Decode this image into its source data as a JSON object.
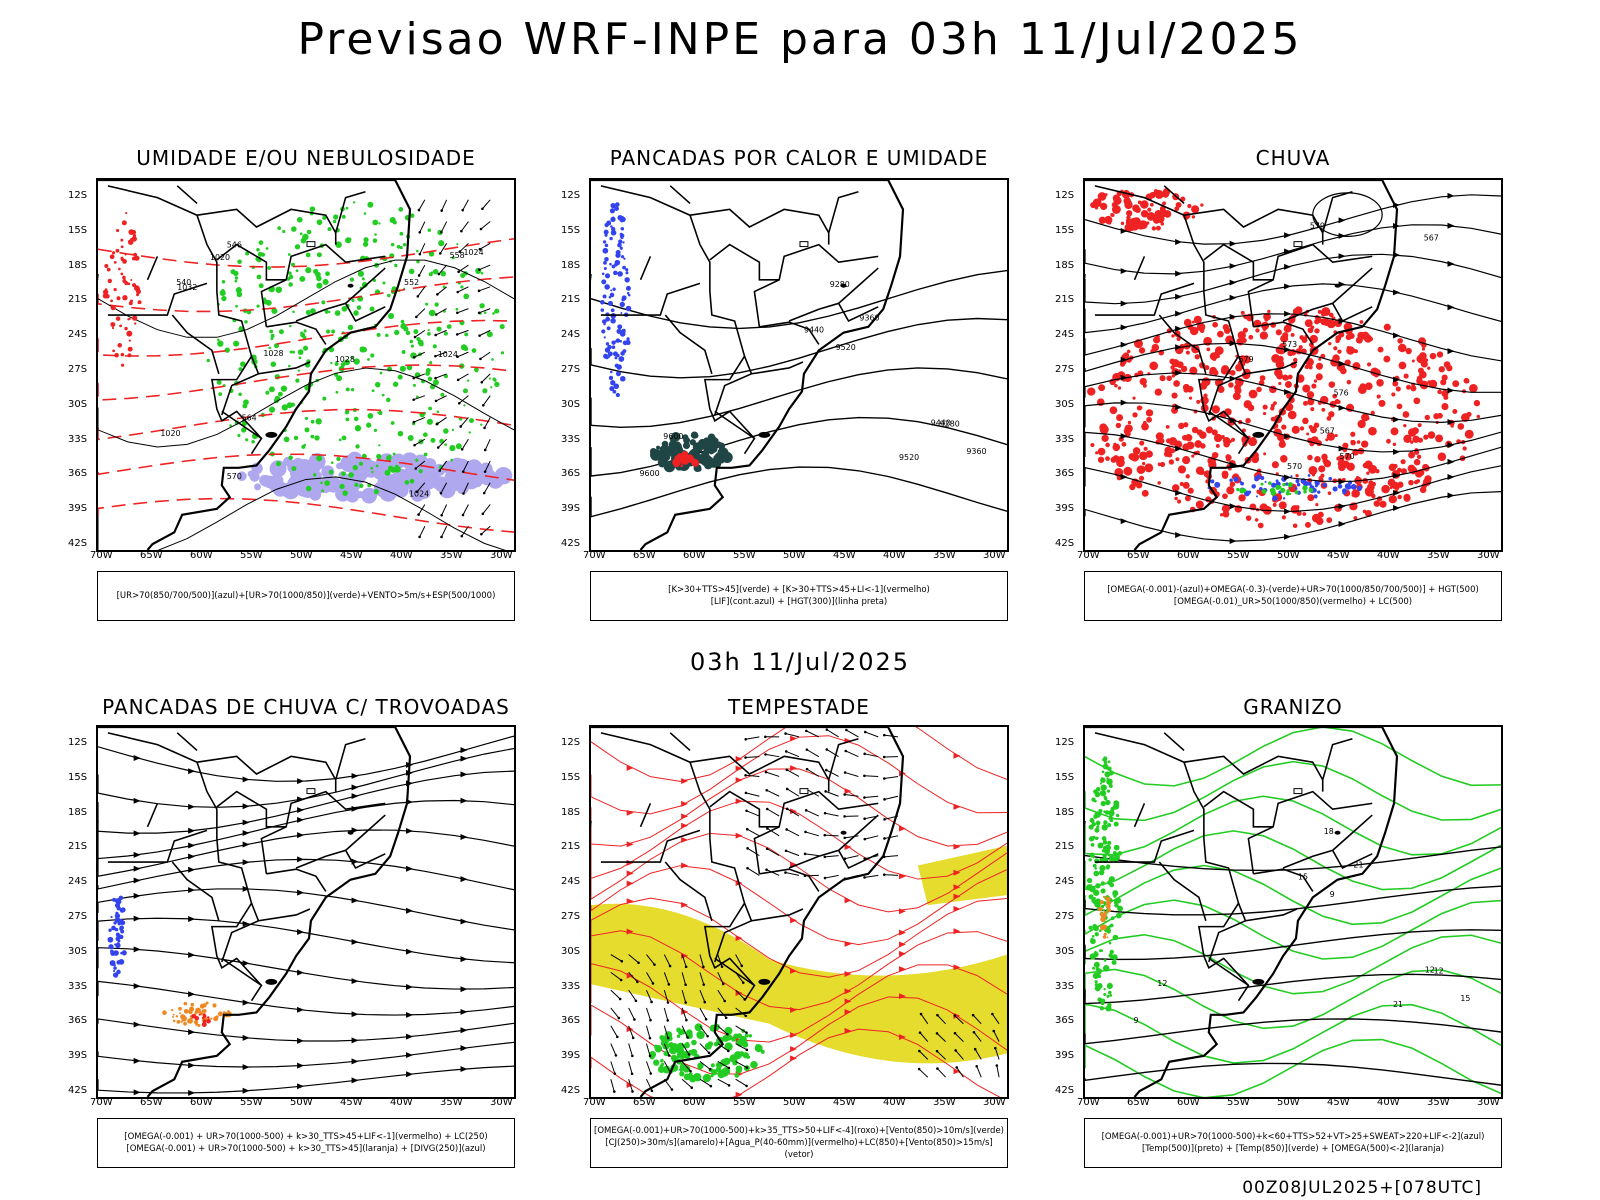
{
  "title": "Previsao WRF-INPE  para 03h 11/Jul/2025",
  "subtitle": "03h 11/Jul/2025",
  "footer": "00Z08JUL2025+[078UTC]",
  "lat_ticks": [
    "12S",
    "15S",
    "18S",
    "21S",
    "24S",
    "27S",
    "30S",
    "33S",
    "36S",
    "39S",
    "42S"
  ],
  "lon_ticks": [
    "70W",
    "65W",
    "60W",
    "55W",
    "50W",
    "45W",
    "40W",
    "35W",
    "30W"
  ],
  "panels": [
    {
      "title": "UMIDADE E/OU NEBULOSIDADE",
      "legend": [
        "[UR>70(850/700/500)](azul)+[UR>70(1000/850)](verde)+VENTO>5m/s+ESP(500/1000)"
      ],
      "contour_labels": [
        "1020",
        "1024",
        "1028",
        "1024",
        "1020",
        "1032",
        "1028",
        "570",
        "564",
        "558",
        "552",
        "546",
        "540",
        "1024"
      ]
    },
    {
      "title": "PANCADAS POR CALOR E UMIDADE",
      "legend": [
        "[K>30+TTS>45](verde) + [K>30+TTS>45+LI<-1](vermelho)",
        "[LIF](cont.azul) + [HGT(300)](linha preta)"
      ],
      "contour_labels": [
        "9600",
        "9520",
        "9440",
        "9360",
        "9280",
        "9520",
        "9440",
        "9360",
        "9280",
        "9600"
      ]
    },
    {
      "title": "CHUVA",
      "legend": [
        "[OMEGA(-0.001)-(azul)+OMEGA(-0.3)-(verde)+UR>70(1000/850/700/500)] + HGT(500)",
        "[OMEGA(-0.01)_UR>50(1000/850)(vermelho) + LC(500)"
      ],
      "contour_labels": [
        "579",
        "573",
        "570",
        "567",
        "579",
        "576",
        "570",
        "567"
      ]
    },
    {
      "title": "PANCADAS DE CHUVA C/ TROVOADAS",
      "legend": [
        "[OMEGA(-0.001) + UR>70(1000-500) + k>30_TTS>45+LIF<-1](vermelho) + LC(250)",
        "[OMEGA(-0.001) + UR>70(1000-500) + k>30_TTS>45](laranja) + [DIVG(250)](azul)"
      ],
      "contour_labels": []
    },
    {
      "title": "TEMPESTADE",
      "legend": [
        "[OMEGA(-0.001)+UR>70(1000-500)+k>35_TTS>50+LIF<-4](roxo)+[Vento(850)>10m/s](verde)",
        "[CJ(250)>30m/s](amarelo)+[Agua_P(40-60mm)](vermelho)+LC(850)+[Vento(850)>15m/s](vetor)"
      ],
      "contour_labels": []
    },
    {
      "title": "GRANIZO",
      "legend": [
        "[OMEGA(-0.001)+UR>70(1000-500)+k<60+TTS>52+VT>25+SWEAT>220+LIF<-2](azul)",
        "[Temp(500)](preto) + [Temp(850)](verde) + [OMEGA(500)<-2](laranja)"
      ],
      "contour_labels": [
        "12",
        "9",
        "12",
        "15",
        "18",
        "21",
        "15",
        "21",
        "12",
        "9"
      ]
    }
  ],
  "colors": {
    "red": "#ee2222",
    "green": "#22cc22",
    "blue": "#3344ee",
    "lavender": "#b0a8ee",
    "yellow": "#e6dc2e",
    "darkteal": "#1f4545",
    "orange": "#ee8822"
  }
}
